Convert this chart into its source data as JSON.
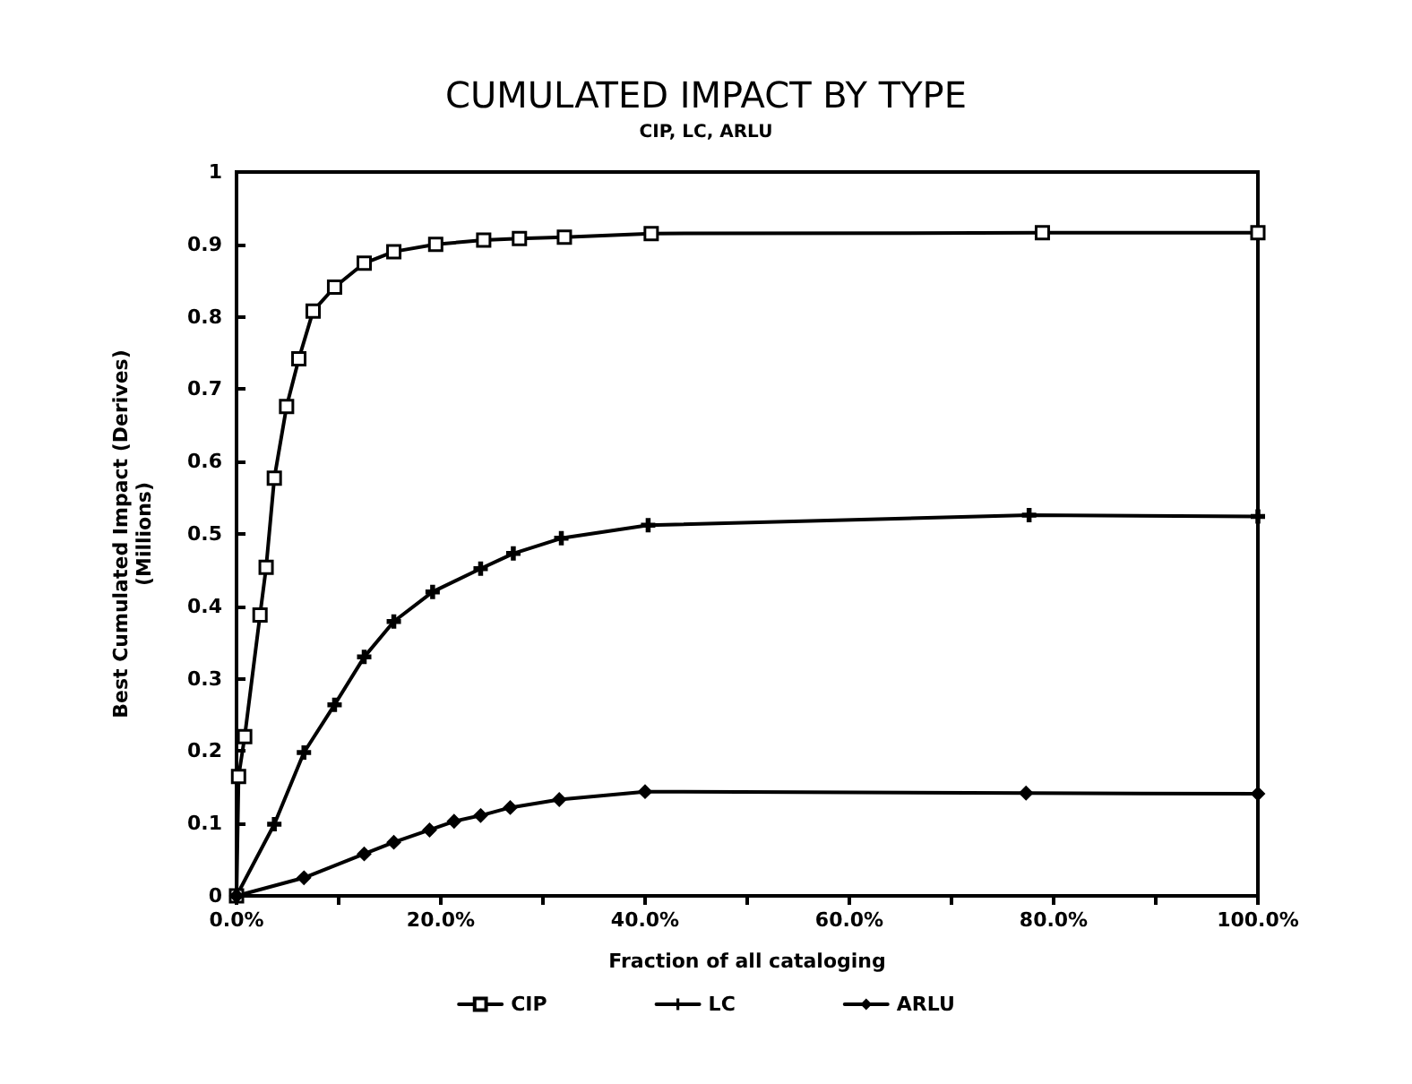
{
  "chart_data": {
    "type": "line",
    "title": "CUMULATED IMPACT BY TYPE",
    "subtitle": "CIP, LC, ARLU",
    "xlabel": "Fraction of all cataloging",
    "ylabel": "Best Cumulated Impact (Derives)\n(Millions)",
    "xlim": [
      0,
      100
    ],
    "xticks": [
      {
        "value": 0,
        "label": "0.0%"
      },
      {
        "value": 10,
        "label": null
      },
      {
        "value": 20,
        "label": "20.0%"
      },
      {
        "value": 30,
        "label": null
      },
      {
        "value": 40,
        "label": "40.0%"
      },
      {
        "value": 50,
        "label": null
      },
      {
        "value": 60,
        "label": "60.0%"
      },
      {
        "value": 70,
        "label": null
      },
      {
        "value": 80,
        "label": "80.0%"
      },
      {
        "value": 90,
        "label": null
      },
      {
        "value": 100,
        "label": "100.0%"
      }
    ],
    "ylim": [
      0,
      1
    ],
    "yticks": [
      0,
      0.1,
      0.2,
      0.3,
      0.4,
      0.5,
      0.6,
      0.7,
      0.8,
      0.9,
      1
    ],
    "grid": false,
    "legend": "bottom",
    "line_style": "solid",
    "series": [
      {
        "name": "CIP",
        "color": "#000000",
        "marker": "square",
        "x": [
          0,
          0.2,
          0.8,
          2.3,
          2.9,
          3.7,
          4.9,
          6.1,
          7.5,
          9.6,
          12.5,
          15.4,
          19.5,
          24.2,
          27.7,
          32.1,
          40.6,
          78.9,
          100
        ],
        "values": [
          0,
          0.165,
          0.22,
          0.388,
          0.454,
          0.577,
          0.676,
          0.742,
          0.808,
          0.841,
          0.874,
          0.89,
          0.9,
          0.906,
          0.908,
          0.91,
          0.915,
          0.916,
          0.916
        ]
      },
      {
        "name": "LC",
        "color": "#000000",
        "marker": "cross",
        "x": [
          0,
          3.7,
          6.6,
          9.6,
          12.5,
          15.4,
          19.2,
          23.9,
          27.1,
          31.8,
          40.3,
          77.6,
          100
        ],
        "values": [
          0,
          0.099,
          0.198,
          0.264,
          0.33,
          0.379,
          0.42,
          0.452,
          0.473,
          0.494,
          0.512,
          0.526,
          0.524
        ]
      },
      {
        "name": "ARLU",
        "color": "#000000",
        "marker": "diamond",
        "x": [
          0,
          6.6,
          12.5,
          15.4,
          18.9,
          21.3,
          23.9,
          26.8,
          31.6,
          40,
          77.3,
          100
        ],
        "values": [
          0,
          0.025,
          0.058,
          0.074,
          0.091,
          0.103,
          0.111,
          0.122,
          0.133,
          0.144,
          0.142,
          0.141
        ]
      }
    ]
  }
}
